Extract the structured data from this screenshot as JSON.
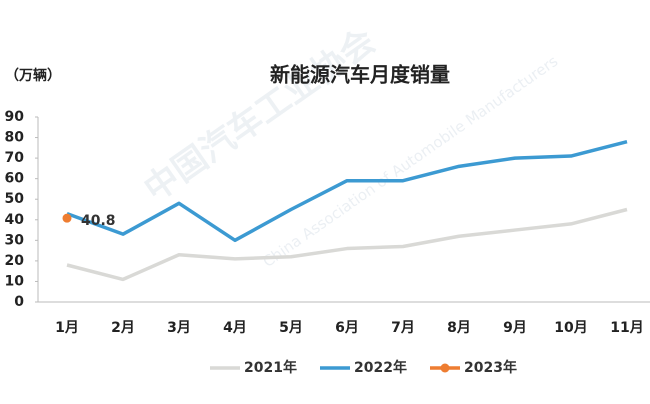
{
  "chart_data": {
    "type": "line",
    "title": "新能源汽车月度销量",
    "unit_label": "（万辆）",
    "watermark": [
      "中国汽车工业协会",
      "China Association of Automobile Manufacturers"
    ],
    "categories": [
      "1月",
      "2月",
      "3月",
      "4月",
      "5月",
      "6月",
      "7月",
      "8月",
      "9月",
      "10月",
      "11月"
    ],
    "series": [
      {
        "name": "2021年",
        "color": "#d9d9d6",
        "values": [
          18,
          11,
          23,
          21,
          22,
          26,
          27,
          32,
          35,
          38,
          45
        ]
      },
      {
        "name": "2022年",
        "color": "#3c9ad2",
        "values": [
          43,
          33,
          48,
          30,
          45,
          59,
          59,
          66,
          70,
          71,
          78
        ]
      },
      {
        "name": "2023年",
        "color": "#ee7d31",
        "values": [
          40.8,
          null,
          null,
          null,
          null,
          null,
          null,
          null,
          null,
          null,
          null
        ],
        "markers": true,
        "data_labels": true
      }
    ],
    "ylim": [
      0,
      90
    ],
    "yticks": [
      0,
      10,
      20,
      30,
      40,
      50,
      60,
      70,
      80,
      90
    ],
    "grid": false,
    "legend": "bottom"
  }
}
